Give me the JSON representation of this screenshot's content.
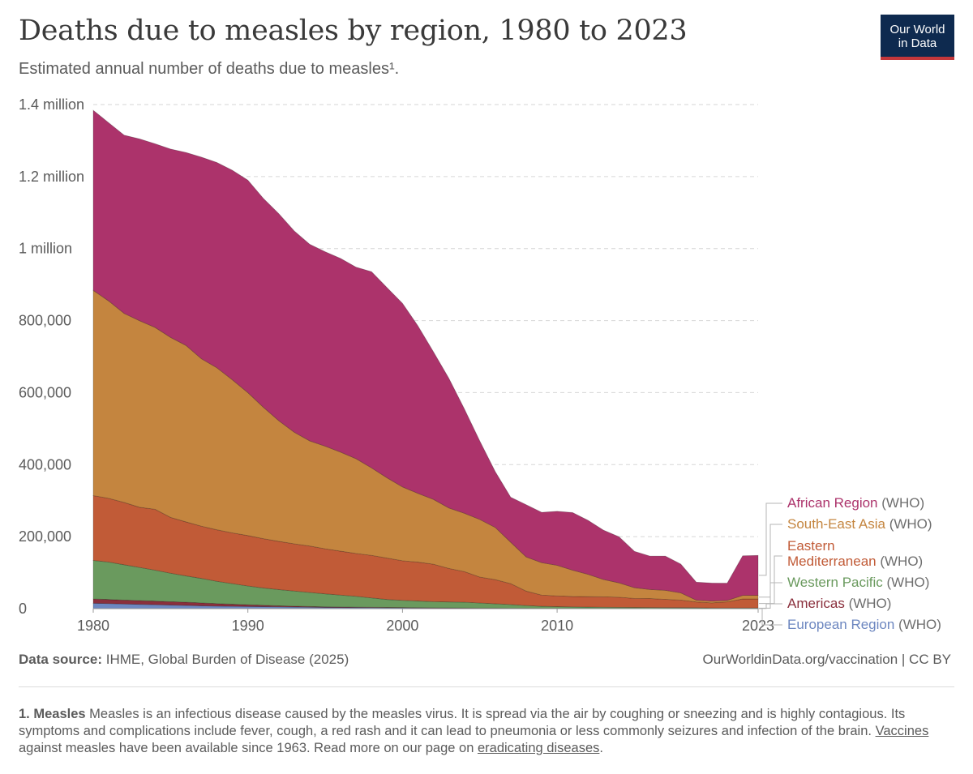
{
  "header": {
    "title": "Deaths due to measles by region, 1980 to 2023",
    "subtitle": "Estimated annual number of deaths due to measles¹.",
    "logo_line1": "Our World",
    "logo_line2": "in Data"
  },
  "chart_data": {
    "type": "area",
    "stacked": true,
    "title": "Deaths due to measles by region, 1980 to 2023",
    "ylabel": "Estimated annual number of deaths due to measles",
    "xlim": [
      1980,
      2023
    ],
    "ylim": [
      0,
      1400000
    ],
    "x_ticks": [
      1980,
      1990,
      2000,
      2010,
      2023
    ],
    "x_tick_labels": [
      "1980",
      "1990",
      "2000",
      "2010",
      "2023"
    ],
    "y_ticks": [
      0,
      200000,
      400000,
      600000,
      800000,
      1000000,
      1200000,
      1400000
    ],
    "y_tick_labels": [
      "0",
      "200,000",
      "400,000",
      "600,000",
      "800,000",
      "1 million",
      "1.2 million",
      "1.4 million"
    ],
    "x": [
      1980,
      1981,
      1982,
      1983,
      1984,
      1985,
      1986,
      1987,
      1988,
      1989,
      1990,
      1991,
      1992,
      1993,
      1994,
      1995,
      1996,
      1997,
      1998,
      1999,
      2000,
      2001,
      2002,
      2003,
      2004,
      2005,
      2006,
      2007,
      2008,
      2009,
      2010,
      2011,
      2012,
      2013,
      2014,
      2015,
      2016,
      2017,
      2018,
      2019,
      2020,
      2021,
      2022,
      2023
    ],
    "series": [
      {
        "name": "European Region",
        "suffix": "(WHO)",
        "color": "#6d87c0",
        "values": [
          15000,
          14000,
          13000,
          12000,
          11000,
          10000,
          9000,
          8000,
          7000,
          6500,
          6000,
          5500,
          5000,
          4500,
          4000,
          3500,
          3200,
          3000,
          2800,
          2500,
          2200,
          2000,
          1800,
          1600,
          1400,
          1200,
          1100,
          1000,
          900,
          800,
          700,
          650,
          600,
          550,
          500,
          450,
          400,
          400,
          600,
          600,
          300,
          200,
          300,
          400
        ]
      },
      {
        "name": "Americas",
        "suffix": "(WHO)",
        "color": "#8a2f3c",
        "values": [
          12000,
          11500,
          11000,
          10500,
          10000,
          9500,
          9000,
          8000,
          7000,
          6000,
          5000,
          4000,
          3000,
          2500,
          2000,
          1700,
          1500,
          1300,
          1100,
          1000,
          900,
          800,
          700,
          650,
          600,
          550,
          500,
          450,
          400,
          350,
          300,
          280,
          260,
          240,
          220,
          200,
          200,
          200,
          200,
          200,
          100,
          100,
          100,
          100
        ]
      },
      {
        "name": "Western Pacific",
        "suffix": "(WHO)",
        "color": "#6a9a5e",
        "values": [
          107000,
          104000,
          98000,
          92000,
          86000,
          79000,
          73000,
          68000,
          62000,
          57000,
          52000,
          48000,
          45000,
          42000,
          39000,
          36000,
          33000,
          30000,
          26000,
          22000,
          20000,
          18500,
          17000,
          16500,
          16000,
          14000,
          12000,
          10000,
          7500,
          5500,
          4500,
          4000,
          3500,
          3200,
          3000,
          2700,
          2500,
          2300,
          2100,
          1900,
          1700,
          1600,
          1500,
          1500
        ]
      },
      {
        "name": "Eastern Mediterranean",
        "suffix": "(WHO)",
        "color": "#c15b37",
        "values": [
          180000,
          177000,
          173000,
          167000,
          169000,
          155000,
          150000,
          145000,
          143000,
          141000,
          140000,
          137000,
          134000,
          131000,
          129000,
          125000,
          122000,
          119000,
          118000,
          115000,
          110000,
          108000,
          104000,
          93000,
          85000,
          72000,
          67000,
          58000,
          40000,
          31000,
          30000,
          29000,
          29000,
          29000,
          28000,
          25000,
          25000,
          23000,
          21000,
          16000,
          14000,
          17000,
          25000,
          25000
        ]
      },
      {
        "name": "South-East Asia",
        "suffix": "(WHO)",
        "color": "#c4853f",
        "values": [
          570000,
          548000,
          525000,
          518000,
          505000,
          500000,
          490000,
          465000,
          450000,
          425000,
          397000,
          365000,
          335000,
          310000,
          292000,
          285000,
          275000,
          263000,
          243000,
          223000,
          205000,
          191000,
          180000,
          168000,
          162000,
          160000,
          145000,
          115000,
          95000,
          90000,
          85000,
          73000,
          62000,
          48000,
          40000,
          30000,
          25000,
          25000,
          20000,
          5000,
          5000,
          4000,
          10000,
          10000
        ]
      },
      {
        "name": "African Region",
        "suffix": "(WHO)",
        "color": "#ac336b",
        "values": [
          500000,
          495000,
          495000,
          505000,
          510000,
          523000,
          536000,
          560000,
          570000,
          582000,
          590000,
          580000,
          575000,
          559000,
          546000,
          540000,
          538000,
          532000,
          545000,
          528000,
          510000,
          465000,
          410000,
          360000,
          290000,
          218000,
          155000,
          125000,
          145000,
          140000,
          150000,
          160000,
          150000,
          137000,
          128000,
          101000,
          93000,
          95000,
          80000,
          50000,
          50000,
          48000,
          110000,
          111000
        ]
      }
    ]
  },
  "source": {
    "label": "Data source:",
    "text": "IHME, Global Burden of Disease (2025)",
    "url": "OurWorldinData.org/vaccination | CC BY"
  },
  "footnote": {
    "marker": "1. Measles",
    "text1": "Measles is an infectious disease caused by the measles virus. It is spread via the air by coughing or sneezing and is highly contagious. Its symptoms and complications include fever, cough, a red rash and it can lead to pneumonia or less commonly seizures and infection of the brain.",
    "link1": "Vaccines",
    "text2": "against measles have been available since 1963. Read more on our page on",
    "link2": "eradicating diseases",
    "text3": "."
  }
}
